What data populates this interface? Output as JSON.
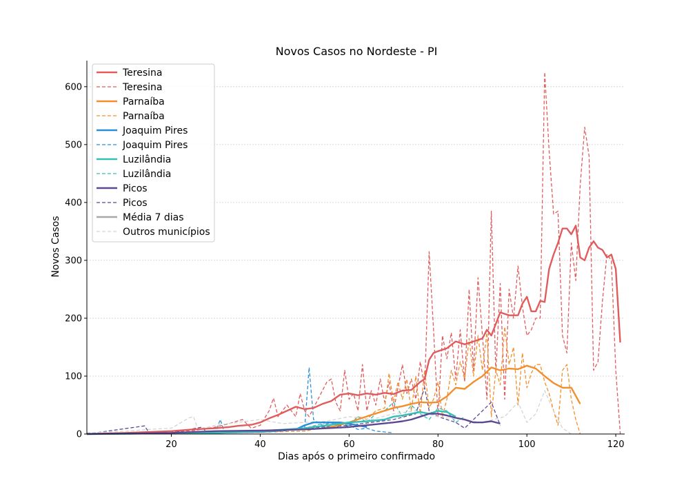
{
  "chart_data": {
    "type": "line",
    "title": "Novos Casos no Nordeste - PI",
    "xlabel": "Dias após o primeiro confirmado",
    "ylabel": "Novos Casos",
    "xlim": [
      1,
      122
    ],
    "ylim": [
      0,
      645
    ],
    "xticks": [
      20,
      40,
      60,
      80,
      100,
      120
    ],
    "yticks": [
      0,
      100,
      200,
      300,
      400,
      500,
      600
    ],
    "grid": "horizontal-dotted",
    "legend_position": "top-left",
    "legend": [
      {
        "label": "Teresina",
        "color": "#e05c5c",
        "style": "solid"
      },
      {
        "label": "Teresina",
        "color": "#e05c5c",
        "style": "dashed"
      },
      {
        "label": "Parnaíba",
        "color": "#f28e2b",
        "style": "solid"
      },
      {
        "label": "Parnaíba",
        "color": "#f28e2b",
        "style": "dashed"
      },
      {
        "label": "Joaquim Pires",
        "color": "#2b8fd6",
        "style": "solid"
      },
      {
        "label": "Joaquim Pires",
        "color": "#2b8fd6",
        "style": "dashed"
      },
      {
        "label": "Luzilândia",
        "color": "#36bdb5",
        "style": "solid"
      },
      {
        "label": "Luzilândia",
        "color": "#36bdb5",
        "style": "dashed"
      },
      {
        "label": "Picos",
        "color": "#5c4891",
        "style": "solid"
      },
      {
        "label": "Picos",
        "color": "#5c4891",
        "style": "dashed"
      },
      {
        "label": "Média 7 dias",
        "color": "#a8a8a8",
        "style": "solid"
      },
      {
        "label": "Outros municípios",
        "color": "#d4d4d4",
        "style": "dashed"
      }
    ],
    "series": [
      {
        "name": "Teresina",
        "kind": "daily",
        "color": "#e05c5c",
        "x": [
          1,
          5,
          10,
          15,
          20,
          25,
          30,
          33,
          36,
          38,
          40,
          42,
          43,
          44,
          46,
          48,
          49,
          50,
          51,
          53,
          55,
          56,
          57,
          58,
          59,
          60,
          61,
          62,
          63,
          64,
          65,
          66,
          67,
          68,
          69,
          70,
          71,
          72,
          73,
          74,
          75,
          76,
          77,
          78,
          79,
          80,
          81,
          82,
          83,
          84,
          85,
          86,
          87,
          88,
          89,
          90,
          91,
          92,
          93,
          94,
          95,
          96,
          97,
          98,
          99,
          100,
          101,
          102,
          103,
          104,
          105,
          106,
          107,
          108,
          109,
          110,
          111,
          112,
          113,
          114,
          115,
          116,
          117,
          118,
          119,
          120,
          121
        ],
        "y": [
          0,
          1,
          2,
          3,
          4,
          6,
          12,
          18,
          25,
          10,
          15,
          40,
          62,
          30,
          50,
          30,
          70,
          40,
          30,
          60,
          90,
          95,
          55,
          40,
          110,
          60,
          70,
          40,
          120,
          40,
          75,
          50,
          95,
          55,
          90,
          40,
          80,
          120,
          70,
          95,
          60,
          125,
          80,
          315,
          180,
          30,
          170,
          130,
          175,
          95,
          180,
          90,
          250,
          110,
          270,
          170,
          60,
          385,
          105,
          260,
          60,
          250,
          200,
          290,
          220,
          170,
          180,
          200,
          200,
          625,
          490,
          380,
          385,
          170,
          140,
          330,
          265,
          430,
          530,
          480,
          110,
          125,
          230,
          310,
          300,
          110,
          0
        ]
      },
      {
        "name": "Teresina",
        "kind": "avg7",
        "color": "#e05c5c",
        "x": [
          1,
          10,
          20,
          25,
          30,
          33,
          35,
          38,
          40,
          42,
          44,
          46,
          48,
          50,
          52,
          54,
          56,
          58,
          60,
          62,
          64,
          66,
          68,
          70,
          72,
          74,
          76,
          77,
          78,
          79,
          80,
          82,
          84,
          86,
          88,
          90,
          91,
          92,
          94,
          96,
          98,
          99,
          100,
          101,
          102,
          103,
          104,
          105,
          106,
          107,
          108,
          109,
          110,
          111,
          112,
          113,
          114,
          115,
          116,
          117,
          118,
          119,
          120,
          121
        ],
        "y": [
          0,
          2,
          5,
          8,
          10,
          12,
          14,
          16,
          20,
          27,
          33,
          40,
          47,
          43,
          45,
          52,
          57,
          68,
          70,
          67,
          70,
          68,
          71,
          69,
          75,
          76,
          90,
          95,
          128,
          140,
          143,
          148,
          160,
          155,
          160,
          165,
          180,
          170,
          210,
          205,
          205,
          225,
          237,
          212,
          212,
          230,
          228,
          285,
          310,
          330,
          355,
          355,
          345,
          360,
          305,
          300,
          322,
          333,
          322,
          318,
          305,
          310,
          285,
          158
        ]
      },
      {
        "name": "Parnaíba",
        "kind": "daily",
        "color": "#f28e2b",
        "x": [
          1,
          20,
          40,
          50,
          55,
          60,
          62,
          64,
          66,
          68,
          69,
          70,
          71,
          72,
          73,
          74,
          75,
          76,
          77,
          78,
          79,
          80,
          81,
          82,
          83,
          84,
          85,
          86,
          87,
          88,
          89,
          90,
          91,
          92,
          93,
          94,
          95,
          96,
          97,
          98,
          99,
          100,
          101,
          102,
          103,
          104,
          105,
          106,
          107,
          108,
          109,
          110,
          111,
          112
        ],
        "y": [
          0,
          1,
          3,
          5,
          12,
          18,
          30,
          25,
          40,
          45,
          105,
          55,
          90,
          60,
          95,
          40,
          100,
          35,
          110,
          45,
          60,
          90,
          30,
          60,
          110,
          85,
          125,
          95,
          165,
          100,
          170,
          110,
          175,
          30,
          110,
          85,
          185,
          120,
          150,
          50,
          140,
          80,
          105,
          120,
          120,
          90,
          70,
          40,
          15,
          110,
          120,
          60,
          25,
          0
        ]
      },
      {
        "name": "Parnaíba",
        "kind": "avg7",
        "color": "#f28e2b",
        "x": [
          55,
          60,
          65,
          70,
          72,
          74,
          76,
          78,
          80,
          82,
          84,
          86,
          88,
          90,
          92,
          94,
          96,
          98,
          100,
          102,
          104,
          106,
          108,
          110,
          112
        ],
        "y": [
          10,
          20,
          33,
          45,
          48,
          52,
          55,
          54,
          55,
          65,
          80,
          78,
          90,
          100,
          115,
          110,
          113,
          112,
          118,
          113,
          100,
          88,
          80,
          80,
          52
        ]
      },
      {
        "name": "Joaquim Pires",
        "kind": "daily",
        "color": "#2b8fd6",
        "x": [
          1,
          20,
          30,
          31,
          32,
          40,
          45,
          48,
          50,
          51,
          52,
          54,
          56,
          58,
          60,
          62,
          64,
          66,
          70
        ],
        "y": [
          0,
          1,
          3,
          25,
          2,
          3,
          5,
          8,
          10,
          115,
          25,
          15,
          20,
          10,
          15,
          8,
          10,
          5,
          2
        ]
      },
      {
        "name": "Joaquim Pires",
        "kind": "avg7",
        "color": "#2b8fd6",
        "x": [
          1,
          30,
          40,
          48,
          50,
          52,
          54,
          56,
          58,
          60,
          62,
          64
        ],
        "y": [
          0,
          2,
          4,
          8,
          15,
          20,
          20,
          20,
          20,
          18,
          15,
          12
        ]
      },
      {
        "name": "Luzilândia",
        "kind": "daily",
        "color": "#36bdb5",
        "x": [
          1,
          30,
          40,
          50,
          55,
          60,
          62,
          64,
          66,
          68,
          70,
          72,
          74,
          76,
          78,
          80,
          82,
          84,
          86
        ],
        "y": [
          0,
          2,
          4,
          10,
          20,
          15,
          30,
          20,
          35,
          40,
          55,
          30,
          50,
          35,
          25,
          45,
          40,
          20,
          30
        ]
      },
      {
        "name": "Luzilândia",
        "kind": "avg7",
        "color": "#36bdb5",
        "x": [
          1,
          30,
          40,
          50,
          55,
          60,
          64,
          68,
          70,
          72,
          74,
          76,
          78,
          80,
          82,
          84
        ],
        "y": [
          0,
          2,
          5,
          10,
          15,
          20,
          22,
          25,
          30,
          32,
          35,
          38,
          35,
          40,
          38,
          30
        ]
      },
      {
        "name": "Picos",
        "kind": "daily",
        "color": "#5c4891",
        "x": [
          1,
          14,
          15,
          20,
          27,
          28,
          30,
          40,
          45,
          50,
          60,
          65,
          70,
          75,
          77,
          78,
          80,
          82,
          84,
          86,
          88,
          90,
          92,
          94
        ],
        "y": [
          0,
          14,
          2,
          2,
          12,
          2,
          5,
          5,
          8,
          10,
          15,
          20,
          25,
          35,
          80,
          40,
          30,
          25,
          20,
          10,
          25,
          40,
          55,
          15
        ]
      },
      {
        "name": "Picos",
        "kind": "avg7",
        "color": "#5c4891",
        "x": [
          1,
          20,
          30,
          40,
          50,
          60,
          65,
          70,
          72,
          74,
          76,
          78,
          80,
          82,
          84,
          86,
          88,
          90,
          92,
          94
        ],
        "y": [
          0,
          2,
          5,
          6,
          8,
          12,
          16,
          20,
          22,
          25,
          30,
          35,
          35,
          32,
          28,
          25,
          20,
          20,
          22,
          18
        ]
      },
      {
        "name": "Outros municípios",
        "kind": "daily",
        "color": "#d4d4d4",
        "x": [
          1,
          10,
          15,
          20,
          24,
          25,
          26,
          30,
          35,
          40,
          45,
          50,
          55,
          60,
          65,
          70,
          75,
          80,
          85,
          90,
          95,
          98,
          100,
          102,
          104,
          106,
          108,
          110
        ],
        "y": [
          2,
          5,
          8,
          10,
          28,
          30,
          8,
          15,
          20,
          25,
          18,
          20,
          22,
          30,
          25,
          35,
          40,
          30,
          25,
          20,
          30,
          55,
          20,
          35,
          75,
          40,
          10,
          0
        ]
      }
    ]
  }
}
